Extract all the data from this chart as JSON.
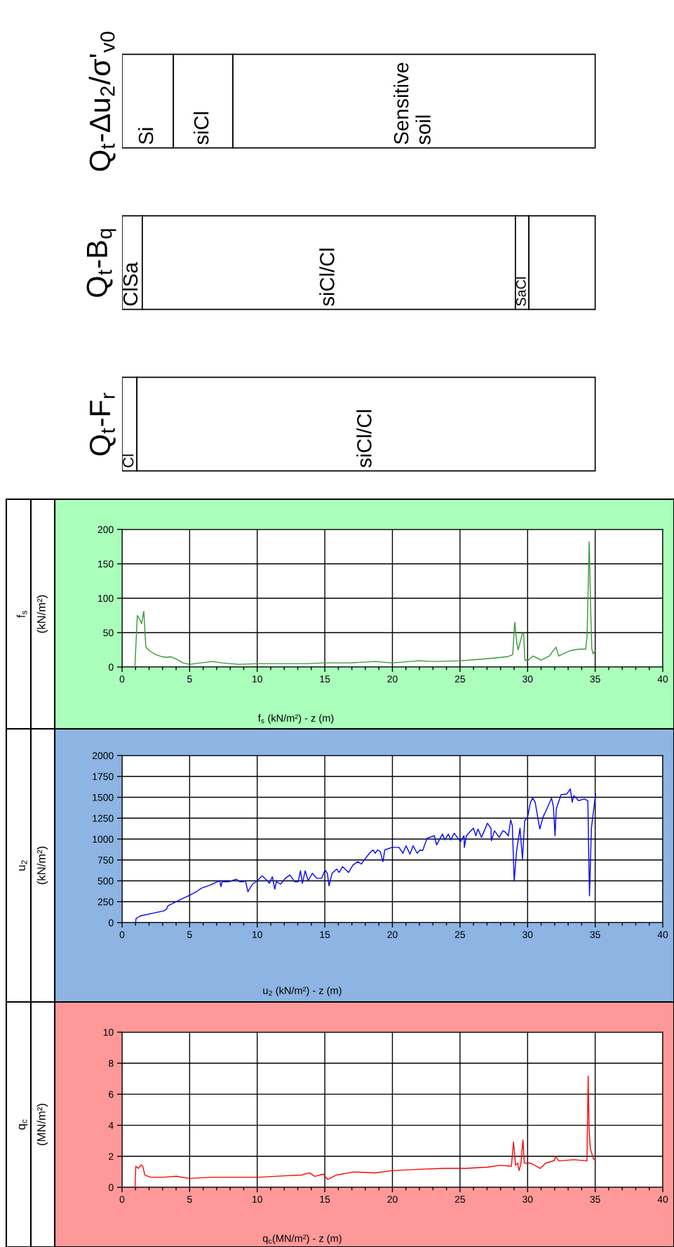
{
  "chart_data": [
    {
      "type": "bar",
      "orientation": "horizontal",
      "stacked": true,
      "xlim": [
        0,
        40
      ],
      "tick_labels": "y",
      "categories": [
        "Q$_{t}$-Δu$_{2}$/σ'$_{v0}$",
        "Q$_{t}$-B$_{q}$",
        "Q$_{t}$-F$_{r}$"
      ],
      "series": [
        {
          "color": "#ffffff",
          "values": [
            3.8,
            1.5,
            1.1
          ],
          "value_labels": [
            "Si",
            "ClSa",
            "Cl"
          ]
        },
        {
          "color": "#ffffff",
          "values": [
            4.4,
            27.6,
            33.9
          ],
          "value_labels": [
            "siCl",
            "siCl/Cl",
            "siCl/Cl"
          ]
        },
        {
          "color": "#ffffff",
          "values": [
            26.8,
            1.0,
            null
          ],
          "value_labels": [
            "Sensitive\nsoil",
            "SaCl",
            null
          ]
        },
        {
          "color": "#ffffff",
          "values": [
            null,
            4.9,
            null
          ]
        }
      ]
    },
    {
      "type": "line",
      "ylabel": "f$_{s}$\n(kN/m²)",
      "xlabel": "f$_{s}$ (kN/m²) - z (m)",
      "x": [
        0.95,
        1.13,
        1.29,
        1.45,
        1.61,
        1.76,
        2.0,
        2.5,
        2.96,
        3.3,
        3.6,
        4.06,
        4.5,
        5.0,
        5.8,
        6.7,
        7.4,
        8.6,
        10.2,
        11.8,
        13.7,
        14.9,
        16.8,
        18.7,
        20.0,
        21.9,
        23.1,
        25.0,
        26.3,
        27.5,
        28.5,
        28.9,
        29.05,
        29.2,
        29.3,
        29.4,
        29.6,
        29.7,
        29.8,
        30.05,
        30.4,
        31.0,
        31.6,
        32.1,
        32.3,
        32.6,
        33.2,
        33.8,
        34.3,
        34.4,
        34.56,
        34.65,
        34.75,
        34.85,
        35.0
      ],
      "series": [
        {
          "color": "#339933",
          "values": [
            0,
            75,
            70,
            63,
            81,
            29,
            24,
            18,
            15,
            14,
            15,
            11,
            6,
            4,
            6,
            8,
            6,
            4,
            5,
            5,
            5,
            6,
            6,
            8,
            6,
            9,
            8,
            9,
            11,
            13,
            15,
            18,
            65,
            35,
            25,
            32,
            48,
            50,
            10,
            10,
            16,
            10,
            16,
            29,
            16,
            19,
            24,
            26,
            26,
            45,
            182,
            95,
            26,
            19,
            24
          ]
        }
      ],
      "xlim": [
        0,
        40
      ],
      "xticks": [
        0,
        5,
        10,
        15,
        20,
        25,
        30,
        35,
        40
      ],
      "ylim": [
        0,
        200
      ],
      "yticks": [
        0,
        50,
        100,
        150,
        200
      ],
      "grid": true
    },
    {
      "type": "line",
      "ylabel": "u$_{2}$\n(kN/m²)",
      "xlabel": "u$_{2}$ (kN/m²) - z (m)",
      "x": [
        1.0,
        1.04,
        1.35,
        2.21,
        3.08,
        3.29,
        3.39,
        4.12,
        5.05,
        5.5,
        5.85,
        6.54,
        7.06,
        7.23,
        7.32,
        7.4,
        7.92,
        8.44,
        8.7,
        8.96,
        9.13,
        9.31,
        9.65,
        10.0,
        10.35,
        10.69,
        10.9,
        11.12,
        11.3,
        11.42,
        11.73,
        12.08,
        12.42,
        12.77,
        13.03,
        13.2,
        13.34,
        13.55,
        13.77,
        14.07,
        14.41,
        14.76,
        15.02,
        15.19,
        15.31,
        15.54,
        15.88,
        16.06,
        16.31,
        16.75,
        17.09,
        17.44,
        17.7,
        17.96,
        18.3,
        18.56,
        18.74,
        18.91,
        19.1,
        19.3,
        19.44,
        19.97,
        20.49,
        20.78,
        21.01,
        21.3,
        21.53,
        21.83,
        22.05,
        22.23,
        22.57,
        23.1,
        23.27,
        23.7,
        23.88,
        24.14,
        24.31,
        24.57,
        25.03,
        25.3,
        25.32,
        25.47,
        25.99,
        26.17,
        26.33,
        26.59,
        27.03,
        27.29,
        27.32,
        27.55,
        27.9,
        28.17,
        28.3,
        28.58,
        28.75,
        28.87,
        29.01,
        29.18,
        29.44,
        29.62,
        29.79,
        30.0,
        30.21,
        30.38,
        30.56,
        30.9,
        31.16,
        31.34,
        31.77,
        31.91,
        32.03,
        32.12,
        32.47,
        32.9,
        33.16,
        33.3,
        33.42,
        33.77,
        34.2,
        34.46,
        34.51,
        34.58,
        34.72,
        35.03
      ],
      "series": [
        {
          "color": "#0000ff",
          "values": [
            0,
            50,
            80,
            110,
            140,
            160,
            200,
            260,
            330,
            370,
            410,
            450,
            490,
            500,
            430,
            490,
            490,
            520,
            490,
            490,
            500,
            370,
            460,
            500,
            560,
            510,
            470,
            550,
            400,
            490,
            460,
            530,
            570,
            490,
            490,
            620,
            470,
            620,
            500,
            590,
            530,
            530,
            630,
            590,
            440,
            590,
            640,
            600,
            670,
            600,
            690,
            730,
            700,
            760,
            830,
            870,
            830,
            870,
            850,
            730,
            870,
            900,
            900,
            830,
            920,
            820,
            920,
            830,
            870,
            860,
            1010,
            1040,
            930,
            1060,
            990,
            1060,
            990,
            1070,
            970,
            1040,
            900,
            1040,
            1130,
            1040,
            1120,
            1020,
            1190,
            1130,
            980,
            1100,
            1020,
            1100,
            1090,
            1040,
            1230,
            1160,
            500,
            850,
            1130,
            760,
            1220,
            1260,
            1440,
            1490,
            1440,
            1120,
            1270,
            1330,
            1490,
            1390,
            1040,
            1360,
            1530,
            1540,
            1600,
            1440,
            1520,
            1460,
            1480,
            1460,
            930,
            320,
            1130,
            1540
          ]
        }
      ],
      "xlim": [
        0,
        40
      ],
      "xticks": [
        0,
        5,
        10,
        15,
        20,
        25,
        30,
        35,
        40
      ],
      "ylim": [
        0,
        2000
      ],
      "yticks": [
        0,
        250,
        500,
        750,
        1000,
        1250,
        1500,
        1750,
        2000
      ],
      "grid": true
    },
    {
      "type": "line",
      "ylabel": "q$_{c}$\n(MN/m²)",
      "xlabel": "q$_{c}$(MN/m²) - z (m)",
      "x": [
        0.96,
        1.02,
        1.21,
        1.41,
        1.53,
        1.69,
        2.11,
        3.07,
        4.03,
        4.99,
        6.58,
        8.5,
        10.1,
        12.02,
        13.3,
        13.87,
        14.25,
        14.89,
        15.21,
        15.85,
        17.13,
        18.73,
        20.0,
        21.92,
        23.84,
        25.44,
        27.04,
        27.99,
        28.8,
        28.96,
        29.11,
        29.27,
        29.37,
        29.5,
        29.66,
        29.75,
        30.23,
        30.94,
        31.35,
        31.99,
        32.06,
        32.31,
        33.43,
        34.39,
        34.48,
        34.55,
        34.64,
        34.87,
        35.03
      ],
      "series": [
        {
          "color": "#ff0000",
          "values": [
            0,
            1.36,
            1.22,
            1.44,
            1.36,
            0.79,
            0.65,
            0.65,
            0.71,
            0.57,
            0.65,
            0.65,
            0.65,
            0.74,
            0.79,
            0.93,
            0.71,
            0.85,
            0.51,
            0.79,
            0.99,
            0.93,
            1.08,
            1.16,
            1.22,
            1.22,
            1.3,
            1.42,
            1.36,
            2.92,
            1.42,
            1.56,
            1.08,
            1.5,
            3.06,
            1.56,
            1.56,
            1.22,
            1.56,
            1.73,
            2.01,
            1.7,
            1.78,
            1.7,
            7.17,
            3.77,
            2.49,
            1.84,
            1.73
          ]
        }
      ],
      "xlim": [
        0,
        40
      ],
      "xticks": [
        0,
        5,
        10,
        15,
        20,
        25,
        30,
        35,
        40
      ],
      "ylim": [
        0,
        10
      ],
      "yticks": [
        0,
        2,
        4,
        6,
        8,
        10
      ],
      "grid": true
    }
  ]
}
